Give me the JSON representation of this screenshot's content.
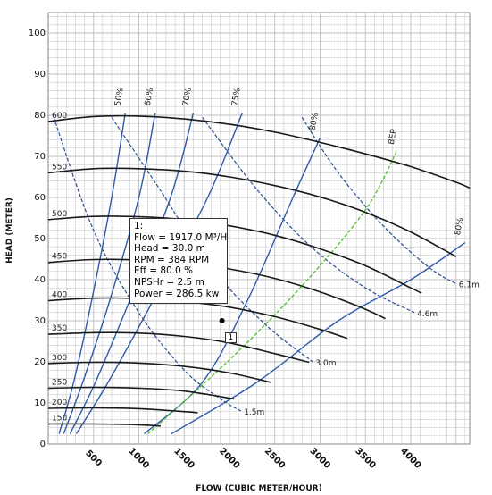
{
  "chart_data": {
    "type": "line",
    "title": "",
    "xlabel": "FLOW (CUBIC METER/HOUR)",
    "ylabel": "HEAD (METER)",
    "xlim": [
      0,
      4650
    ],
    "ylim": [
      0,
      105
    ],
    "xticks": [
      500,
      1000,
      1500,
      2000,
      2500,
      3000,
      3500,
      4000
    ],
    "yticks": [
      0,
      10,
      20,
      30,
      40,
      50,
      60,
      70,
      80,
      90,
      100
    ],
    "grid": true,
    "colors": {
      "head": "#1a1a1a",
      "efficiency": "#2f5aa8",
      "npsh": "#2b4f90",
      "bep": "#5cbf3a",
      "grid": "#bfbfbf"
    },
    "head_curves": [
      {
        "label": "600",
        "x": [
          0,
          500,
          1000,
          1500,
          2000,
          2500,
          3000,
          3500,
          4000,
          4500,
          4650
        ],
        "y": [
          78.5,
          79.7,
          79.8,
          79.1,
          77.8,
          75.9,
          73.4,
          70.6,
          67.5,
          63.7,
          62.3
        ]
      },
      {
        "label": "550",
        "x": [
          0,
          500,
          1000,
          1500,
          2000,
          2500,
          3000,
          3500,
          4000,
          4500
        ],
        "y": [
          66.0,
          67.0,
          67.0,
          66.4,
          65.0,
          62.9,
          60.1,
          56.4,
          51.6,
          45.6
        ]
      },
      {
        "label": "500",
        "x": [
          0,
          500,
          1000,
          1500,
          2000,
          2500,
          3000,
          3500,
          4000,
          4120
        ],
        "y": [
          54.6,
          55.4,
          55.3,
          54.6,
          53.1,
          50.8,
          47.5,
          43.4,
          38.0,
          36.7
        ]
      },
      {
        "label": "450",
        "x": [
          0,
          500,
          1000,
          1500,
          2000,
          2500,
          3000,
          3500,
          3720
        ],
        "y": [
          44.2,
          44.9,
          44.8,
          44.1,
          42.6,
          40.3,
          37.0,
          32.8,
          30.5
        ]
      },
      {
        "label": "400",
        "x": [
          0,
          500,
          1000,
          1500,
          2000,
          2500,
          3000,
          3300
        ],
        "y": [
          34.9,
          35.5,
          35.4,
          34.7,
          33.3,
          31.0,
          27.9,
          25.7
        ]
      },
      {
        "label": "350",
        "x": [
          0,
          500,
          1000,
          1500,
          2000,
          2500,
          2880
        ],
        "y": [
          26.7,
          27.1,
          27.0,
          26.2,
          24.6,
          22.0,
          19.9
        ]
      },
      {
        "label": "300",
        "x": [
          0,
          500,
          1000,
          1500,
          2000,
          2460
        ],
        "y": [
          19.6,
          19.9,
          19.7,
          18.9,
          17.3,
          15.0
        ]
      },
      {
        "label": "250",
        "x": [
          0,
          500,
          1000,
          1500,
          2050
        ],
        "y": [
          13.6,
          13.8,
          13.6,
          12.9,
          11.0
        ]
      },
      {
        "label": "200",
        "x": [
          0,
          500,
          1000,
          1500,
          1650
        ],
        "y": [
          8.7,
          8.8,
          8.6,
          7.9,
          7.6
        ]
      },
      {
        "label": "150",
        "x": [
          0,
          500,
          1000,
          1240
        ],
        "y": [
          4.9,
          4.9,
          4.7,
          4.4
        ]
      }
    ],
    "efficiency_curves": [
      {
        "label": "50%",
        "x": [
          120,
          280,
          480,
          700,
          850
        ],
        "y": [
          2.5,
          15,
          35,
          60,
          80.5
        ]
      },
      {
        "label": "60%",
        "x": [
          170,
          380,
          680,
          1000,
          1180
        ],
        "y": [
          2.5,
          15,
          35,
          60,
          80.5
        ]
      },
      {
        "label": "70%",
        "x": [
          240,
          520,
          900,
          1350,
          1600
        ],
        "y": [
          2.5,
          15,
          35,
          60,
          80.5
        ]
      },
      {
        "label": "75%",
        "x": [
          310,
          660,
          1160,
          1760,
          2140
        ],
        "y": [
          2.5,
          15,
          35,
          60,
          80.5
        ]
      },
      {
        "label": "80%",
        "x": [
          1060,
          1700,
          2200,
          2700,
          3000
        ],
        "y": [
          2.5,
          15,
          35,
          60,
          74.5
        ]
      },
      {
        "label": "80%",
        "x": [
          1360,
          2300,
          3200,
          4000,
          4600
        ],
        "y": [
          2.5,
          15,
          30,
          40,
          49
        ]
      }
    ],
    "npsh_curves": [
      {
        "label": "1.5m",
        "x": [
          60,
          500,
          1000,
          1500,
          1900,
          2130
        ],
        "y": [
          79.5,
          52,
          32,
          18,
          11,
          8
        ]
      },
      {
        "label": "3.0m",
        "x": [
          700,
          1200,
          1800,
          2400,
          2920
        ],
        "y": [
          79.5,
          63,
          43,
          29,
          20
        ]
      },
      {
        "label": "4.6m",
        "x": [
          1700,
          2300,
          2900,
          3500,
          4040
        ],
        "y": [
          79.5,
          62,
          48,
          38,
          32
        ]
      },
      {
        "label": "6.1m",
        "x": [
          2800,
          3200,
          3700,
          4200,
          4500
        ],
        "y": [
          79.5,
          66,
          53,
          43,
          39
        ]
      }
    ],
    "bep_curve": {
      "label": "BEP",
      "x": [
        1100,
        2000,
        2800,
        3500,
        3850
      ],
      "y": [
        2.5,
        20.5,
        38.5,
        57,
        71.5
      ]
    },
    "operating_point": {
      "label": "1",
      "x": 1917,
      "y": 30
    },
    "annotation": {
      "lines": [
        "1:",
        "Flow = 1917.0 M³/Hr",
        "Head = 30.0 m",
        "RPM = 384 RPM",
        "Eff = 80.0 %",
        "NPSHr = 2.5 m",
        "Power = 286.5 kw"
      ]
    }
  }
}
